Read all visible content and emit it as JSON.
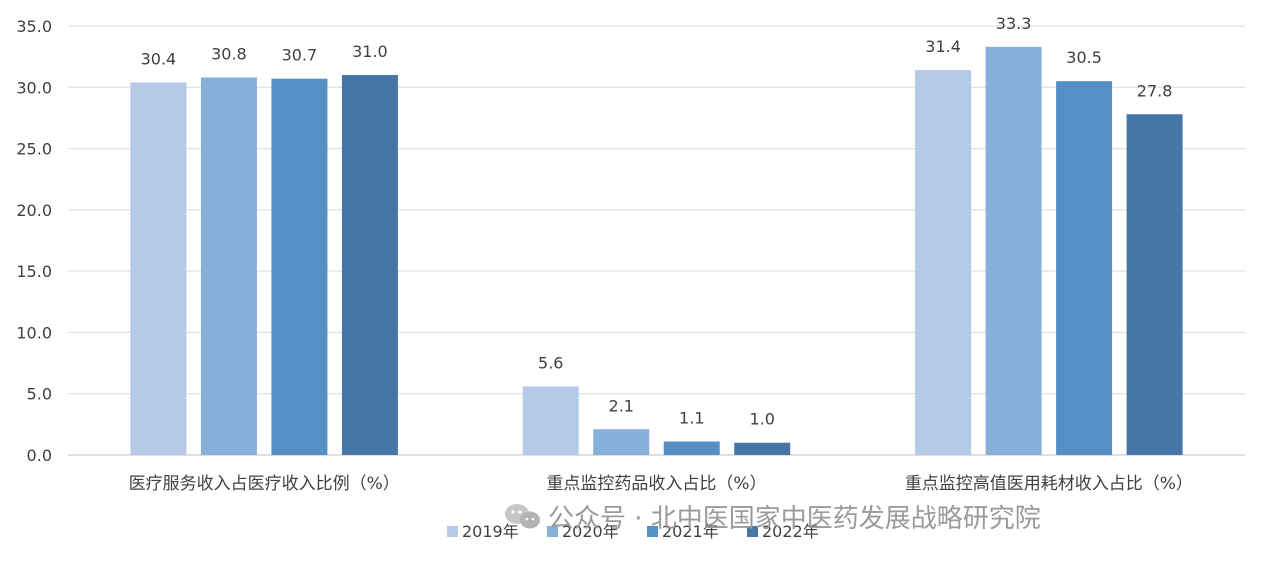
{
  "chart_data": {
    "type": "bar",
    "categories": [
      "医疗服务收入占医疗收入比例（%）",
      "重点监控药品收入占比（%）",
      "重点监控高值医用耗材收入占比（%）"
    ],
    "series": [
      {
        "name": "2019年",
        "color": "#b4cae6",
        "values": [
          30.4,
          5.6,
          31.4
        ],
        "labels": [
          "30.4",
          "5.6",
          "31.4"
        ]
      },
      {
        "name": "2020年",
        "color": "#86afd9",
        "values": [
          30.8,
          2.1,
          33.3
        ],
        "labels": [
          "30.8",
          "2.1",
          "33.3"
        ]
      },
      {
        "name": "2021年",
        "color": "#548fc6",
        "values": [
          30.7,
          1.1,
          30.5
        ],
        "labels": [
          "30.7",
          "1.1",
          "30.5"
        ]
      },
      {
        "name": "2022年",
        "color": "#4676a5",
        "values": [
          31.0,
          1.0,
          27.8
        ],
        "labels": [
          "31.0",
          "1.0",
          "27.8"
        ]
      }
    ],
    "yticks": [
      "0.0",
      "5.0",
      "10.0",
      "15.0",
      "20.0",
      "25.0",
      "30.0",
      "35.0"
    ],
    "ylim": [
      0,
      35
    ],
    "grid": true,
    "legend": "bottom-center",
    "title": "",
    "xlabel": "",
    "ylabel": ""
  },
  "watermark": {
    "text": "公众号 · 北中医国家中医药发展战略研究院",
    "icon": "wechat-icon"
  }
}
